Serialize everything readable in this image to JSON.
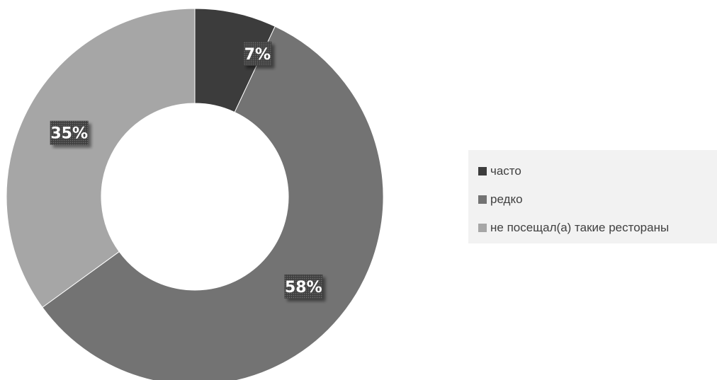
{
  "chart_data": {
    "type": "pie",
    "variant": "donut",
    "categories": [
      "часто",
      "редко",
      "не посещал(а) такие рестораны"
    ],
    "values": [
      7,
      58,
      35
    ],
    "labels": [
      "7%",
      "58%",
      "35%"
    ],
    "colors": [
      "#3c3c3c",
      "#737373",
      "#a6a6a6"
    ],
    "legend_position": "right"
  }
}
